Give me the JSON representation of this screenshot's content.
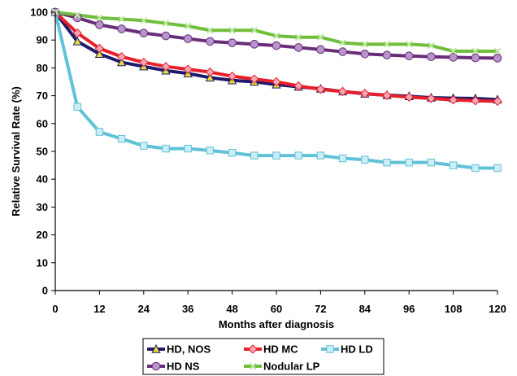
{
  "chart_data": {
    "type": "line",
    "xlabel": "Months after diagnosis",
    "ylabel": "Relative Survival Rate (%)",
    "xlim": [
      0,
      120
    ],
    "ylim": [
      0,
      100
    ],
    "xticks": [
      0,
      12,
      24,
      36,
      48,
      60,
      72,
      84,
      96,
      108,
      120
    ],
    "yticks": [
      0,
      10,
      20,
      30,
      40,
      50,
      60,
      70,
      80,
      90,
      100
    ],
    "grid": false,
    "legend_position": "bottom",
    "x": [
      0,
      6,
      12,
      18,
      24,
      30,
      36,
      42,
      48,
      54,
      60,
      66,
      72,
      78,
      84,
      90,
      96,
      102,
      108,
      114,
      120
    ],
    "series": [
      {
        "name": "HD, NOS",
        "color": "#1f1a6e",
        "marker": "triangle",
        "marker_color": "#e8d83a",
        "values": [
          100,
          89.5,
          85,
          82,
          80.5,
          79,
          78,
          76.5,
          75.5,
          75,
          74,
          73.2,
          72.5,
          71.5,
          70.7,
          70.2,
          69.8,
          69.3,
          69.1,
          69,
          68.6
        ]
      },
      {
        "name": "HD MC",
        "color": "#e8202a",
        "marker": "diamond",
        "marker_color": "#f4a6b6",
        "values": [
          100,
          92.5,
          87,
          84,
          82,
          80.5,
          79.5,
          78.5,
          77,
          76,
          75,
          73.5,
          72.3,
          71.5,
          70.8,
          70.1,
          69.5,
          69,
          68.5,
          68.2,
          68
        ]
      },
      {
        "name": "HD LD",
        "color": "#5fc2d8",
        "marker": "square",
        "marker_color": "#cdeef6",
        "values": [
          100,
          66,
          57,
          54.5,
          52,
          51,
          51,
          50.3,
          49.5,
          48.5,
          48.5,
          48.5,
          48.5,
          47.5,
          47,
          46,
          46,
          46,
          45,
          44,
          44
        ]
      },
      {
        "name": "HD NS",
        "color": "#6b2d7a",
        "marker": "circle",
        "marker_color": "#b894cc",
        "values": [
          100,
          98,
          95.5,
          94,
          92.5,
          91.5,
          90.5,
          89.5,
          89,
          88.5,
          88,
          87.3,
          86.6,
          85.8,
          85,
          84.6,
          84.3,
          84,
          83.8,
          83.6,
          83.5
        ]
      },
      {
        "name": "Nodular LP",
        "color": "#6fbf3a",
        "marker": "x",
        "marker_color": "#bfe6a6",
        "values": [
          100,
          99,
          98,
          97.5,
          97,
          96,
          95,
          93.5,
          93.5,
          93.5,
          91.5,
          91,
          91,
          89,
          88.5,
          88.5,
          88.5,
          88,
          86,
          86,
          86
        ]
      }
    ]
  }
}
